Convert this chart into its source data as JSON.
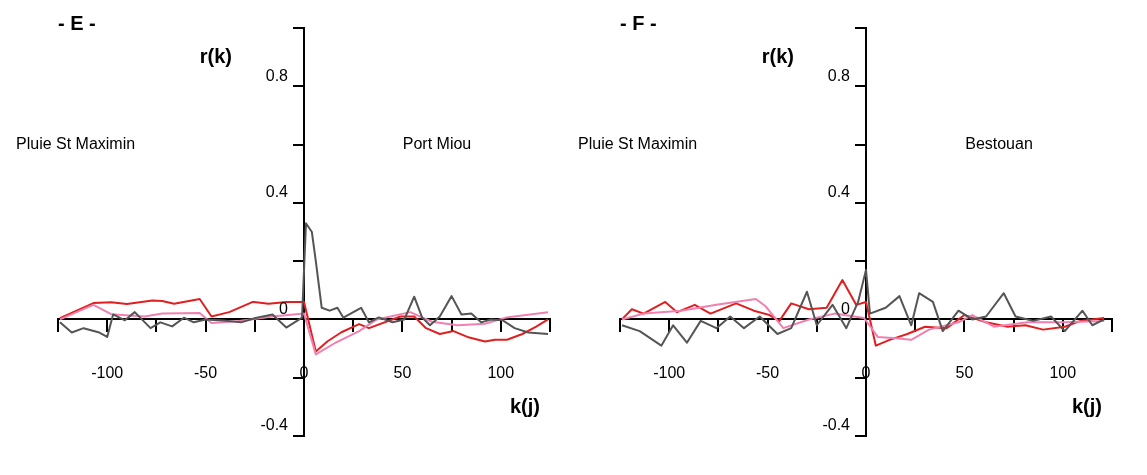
{
  "chart_data": [
    {
      "type": "line",
      "title": "- E -",
      "ylabel": "r(k)",
      "xlabel": "k(j)",
      "annotations": [
        "Pluie St Maximin",
        "Port Miou"
      ],
      "xlim": [
        -125,
        125
      ],
      "ylim": [
        -0.4,
        1.0
      ],
      "xticks": [
        {
          "value": -125,
          "label": null
        },
        -100,
        {
          "value": -75,
          "label": null
        },
        -50,
        {
          "value": -25,
          "label": null
        },
        0,
        {
          "value": 25,
          "label": null
        },
        50,
        {
          "value": 75,
          "label": null
        },
        100,
        {
          "value": 125,
          "label": null
        }
      ],
      "yticks": [
        -0.4,
        {
          "value": -0.2,
          "label": null
        },
        0,
        {
          "value": 0.2,
          "label": null
        },
        0.4,
        {
          "value": 0.6,
          "label": null
        },
        0.8,
        {
          "value": 1.0,
          "label": null
        }
      ],
      "series": [
        {
          "color": "#555555",
          "x": [
            -124,
            -118,
            -112,
            -104,
            -100,
            -97,
            -91,
            -86,
            -78,
            -73,
            -67,
            -61,
            -56,
            -50,
            -41,
            -32,
            -24,
            -16,
            -9,
            -1,
            1,
            4,
            6,
            9,
            13,
            17,
            20,
            29,
            33,
            38,
            45,
            51,
            56,
            60,
            64,
            69,
            75,
            80,
            85,
            90,
            95,
            101,
            107,
            114,
            124
          ],
          "values": [
            -0.01,
            -0.045,
            -0.03,
            -0.045,
            -0.06,
            0.017,
            -0.003,
            0.025,
            -0.03,
            -0.01,
            -0.024,
            0.006,
            -0.01,
            0,
            -0.004,
            -0.01,
            0.006,
            0.017,
            -0.028,
            0.006,
            0.33,
            0.3,
            0.2,
            0.04,
            0.03,
            0.04,
            0.006,
            0.04,
            -0.01,
            0.007,
            -0.01,
            0,
            0.078,
            0.007,
            -0.02,
            0.01,
            0.08,
            0.017,
            0.02,
            -0.01,
            0,
            -0.003,
            -0.03,
            -0.045,
            -0.05
          ]
        },
        {
          "color": "#f080b0",
          "x": [
            -124,
            -107,
            -98,
            -81,
            -72,
            -53,
            -47,
            -34,
            -16,
            0,
            6,
            16,
            19,
            28,
            37,
            54,
            65,
            78,
            92,
            103,
            124
          ],
          "values": [
            0,
            0.05,
            0.018,
            0.01,
            0.02,
            0.022,
            -0.012,
            -0.006,
            0.01,
            0.02,
            -0.12,
            -0.08,
            -0.07,
            -0.04,
            0,
            0.025,
            -0.008,
            -0.02,
            -0.015,
            0.007,
            0.025
          ]
        },
        {
          "color": "#e02020",
          "x": [
            -124,
            -107,
            -98,
            -90,
            -77,
            -72,
            -66,
            -53,
            -47,
            -38,
            -26,
            -18,
            -9,
            0,
            6,
            12,
            19,
            28,
            33,
            49,
            56,
            62,
            69,
            76,
            83,
            92,
            97,
            103,
            111,
            118,
            124
          ],
          "values": [
            0.004,
            0.056,
            0.059,
            0.053,
            0.065,
            0.063,
            0.054,
            0.07,
            0.01,
            0.025,
            0.06,
            0.054,
            0.06,
            0.06,
            -0.11,
            -0.075,
            -0.044,
            -0.016,
            -0.03,
            0.01,
            0.01,
            -0.03,
            -0.05,
            -0.04,
            -0.06,
            -0.076,
            -0.07,
            -0.07,
            -0.05,
            -0.025,
            0
          ]
        }
      ]
    },
    {
      "type": "line",
      "title": "- F -",
      "ylabel": "r(k)",
      "xlabel": "k(j)",
      "annotations": [
        "Pluie St Maximin",
        "Bestouan"
      ],
      "xlim": [
        -125,
        125
      ],
      "ylim": [
        -0.4,
        1.0
      ],
      "xticks": [
        {
          "value": -125,
          "label": null
        },
        -100,
        {
          "value": -75,
          "label": null
        },
        -50,
        {
          "value": -25,
          "label": null
        },
        0,
        {
          "value": 25,
          "label": null
        },
        50,
        {
          "value": 75,
          "label": null
        },
        100,
        {
          "value": 125,
          "label": null
        }
      ],
      "yticks": [
        -0.4,
        {
          "value": -0.2,
          "label": null
        },
        0,
        {
          "value": 0.2,
          "label": null
        },
        0.4,
        {
          "value": 0.6,
          "label": null
        },
        0.8,
        {
          "value": 1.0,
          "label": null
        }
      ],
      "series": [
        {
          "color": "#555555",
          "x": [
            -124,
            -115,
            -104,
            -98,
            -91,
            -84,
            -76,
            -69,
            -62,
            -54,
            -45,
            -38,
            -30,
            -25,
            -17,
            -10,
            -4,
            0,
            2,
            10,
            17,
            23,
            27,
            34,
            39,
            47,
            54,
            61,
            70,
            76,
            85,
            94,
            101,
            110,
            115,
            121
          ],
          "values": [
            -0.02,
            -0.04,
            -0.09,
            -0.02,
            -0.08,
            -0.005,
            -0.03,
            0.01,
            -0.03,
            0.01,
            -0.05,
            -0.03,
            0.095,
            -0.02,
            0.05,
            -0.03,
            0.06,
            0.17,
            0.02,
            0.04,
            0.08,
            -0.02,
            0.09,
            0.06,
            -0.04,
            0.03,
            0,
            0.01,
            0.09,
            0.01,
            -0.005,
            0.01,
            -0.04,
            0.03,
            -0.02,
            0
          ]
        },
        {
          "color": "#f080b0",
          "x": [
            -124,
            -113,
            -94,
            -76,
            -56,
            -51,
            -42,
            -29,
            -16,
            -1,
            6,
            15,
            23,
            32,
            47,
            54,
            65,
            82,
            100,
            121
          ],
          "values": [
            0,
            0.02,
            0.03,
            0.05,
            0.07,
            0.045,
            -0.03,
            0,
            0.02,
            0.005,
            -0.06,
            -0.065,
            -0.07,
            -0.035,
            -0.01,
            0.015,
            -0.025,
            -0.01,
            -0.01,
            -0.005
          ]
        },
        {
          "color": "#e02020",
          "x": [
            -124,
            -119,
            -113,
            -102,
            -96,
            -87,
            -79,
            -66,
            -57,
            -49,
            -44,
            -38,
            -29,
            -20,
            -12,
            -5,
            0,
            5,
            12,
            21,
            30,
            41,
            50,
            61,
            72,
            81,
            90,
            101,
            109,
            121
          ],
          "values": [
            0,
            0.035,
            0.02,
            0.06,
            0.025,
            0.05,
            0.02,
            0.055,
            0.03,
            0.015,
            -0.005,
            0.055,
            0.035,
            0.04,
            0.135,
            0.05,
            0.06,
            -0.09,
            -0.07,
            -0.05,
            -0.025,
            -0.03,
            0.015,
            -0.01,
            -0.025,
            -0.02,
            -0.035,
            -0.025,
            -0.005,
            0.005
          ]
        }
      ]
    }
  ]
}
